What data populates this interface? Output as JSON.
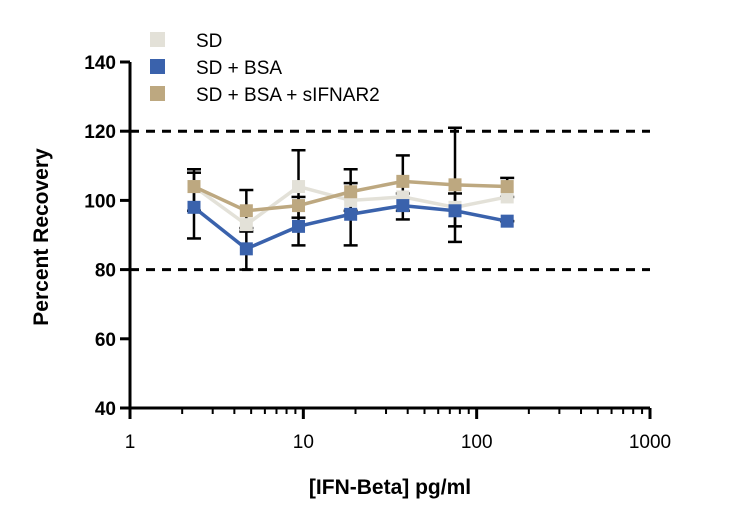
{
  "chart_data": {
    "type": "line",
    "title": "",
    "xlabel": "[IFN-Beta] pg/ml",
    "ylabel": "Percent  Recovery",
    "xscale": "log",
    "xlim": [
      1,
      1000
    ],
    "ylim": [
      40,
      140
    ],
    "x_ticks": [
      "1",
      "10",
      "100",
      "1000"
    ],
    "y_ticks": [
      "40",
      "60",
      "80",
      "100",
      "120",
      "140"
    ],
    "y_tick_values": [
      40,
      60,
      80,
      100,
      120,
      140
    ],
    "x_tick_values": [
      1,
      10,
      100,
      1000
    ],
    "reference_lines": [
      {
        "y": 120,
        "style": "dashed"
      },
      {
        "y": 80,
        "style": "dashed"
      }
    ],
    "legend_position": "top-left",
    "grid": false,
    "x": [
      2.34,
      4.69,
      9.38,
      18.75,
      37.5,
      75,
      150
    ],
    "series": [
      {
        "name": "SD",
        "color": "#e3e1d8",
        "values": [
          104,
          93,
          104,
          100,
          101,
          98,
          101
        ],
        "err_low": [
          0,
          0,
          0,
          0,
          0,
          0,
          0
        ],
        "err_high": [
          0,
          0,
          0,
          0,
          0,
          0,
          0
        ]
      },
      {
        "name": "SD + BSA",
        "color": "#3a62ac",
        "values": [
          98,
          86,
          92.5,
          96,
          98.5,
          97,
          94
        ],
        "err_low": [
          89,
          80,
          87,
          87,
          94.5,
          88,
          94
        ],
        "err_high": [
          108,
          92,
          101,
          109,
          102,
          102,
          94
        ]
      },
      {
        "name": "SD + BSA + sIFNAR2",
        "color": "#bda880",
        "values": [
          104,
          97,
          98.5,
          102.5,
          105.5,
          104.5,
          104
        ],
        "err_low": [
          97,
          91,
          95,
          97,
          97,
          92.5,
          101
        ],
        "err_high": [
          109,
          103,
          114.5,
          105,
          113,
          121,
          106.5
        ]
      }
    ],
    "error_bar_color": "#000000"
  }
}
